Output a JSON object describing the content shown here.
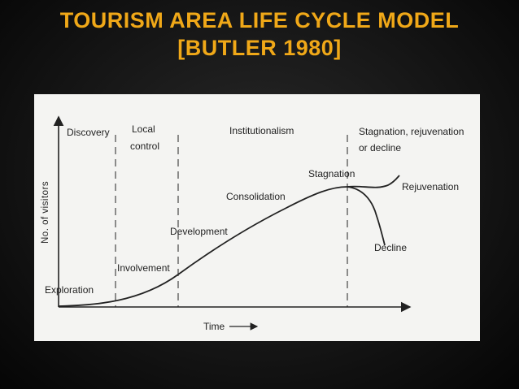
{
  "title": {
    "line1": "TOURISM AREA LIFE CYCLE MODEL",
    "line2": "[BUTLER 1980]"
  },
  "diagram": {
    "ylabel": "No. of visitors",
    "xlabel": "Time",
    "phases": {
      "discovery": "Discovery",
      "local_control_1": "Local",
      "local_control_2": "control",
      "institutionalism": "Institutionalism",
      "stagnation_header_1": "Stagnation, rejuvenation",
      "stagnation_header_2": "or decline"
    },
    "stages": {
      "exploration": "Exploration",
      "involvement": "Involvement",
      "development": "Development",
      "consolidation": "Consolidation",
      "stagnation": "Stagnation",
      "rejuvenation": "Rejuvenation",
      "decline": "Decline"
    },
    "colors": {
      "title": "#f0a818",
      "ink": "#222222",
      "panel": "#f4f4f2"
    }
  }
}
